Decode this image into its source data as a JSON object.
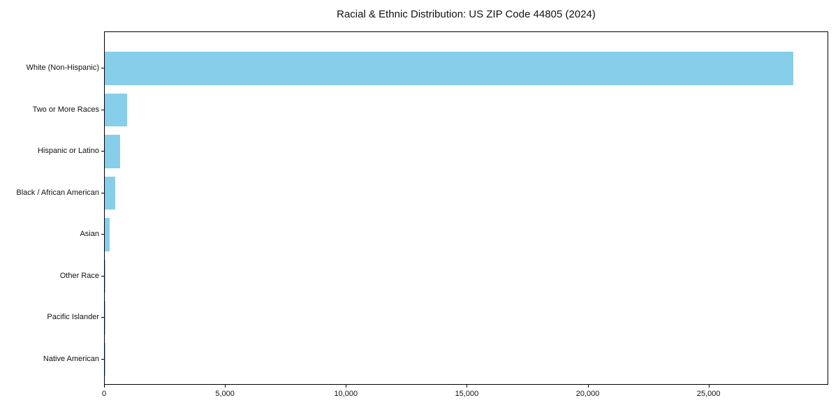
{
  "title": "Racial & Ethnic Distribution: US ZIP Code 44805 (2024)",
  "colors": {
    "bar": "#87CEEB",
    "axis": "#000000",
    "text": "#111111",
    "background": "#FFFFFF"
  },
  "chart_data": {
    "type": "bar",
    "orientation": "horizontal",
    "title": "Racial & Ethnic Distribution: US ZIP Code 44805 (2024)",
    "categories": [
      "White (Non-Hispanic)",
      "Two or More Races",
      "Hispanic or Latino",
      "Black / African American",
      "Asian",
      "Other Race",
      "Pacific Islander",
      "Native American"
    ],
    "values": [
      28470,
      910,
      635,
      440,
      200,
      40,
      5,
      15
    ],
    "xlabel": "",
    "ylabel": "",
    "xlim": [
      0,
      29890
    ],
    "x_ticks": [
      0,
      5000,
      10000,
      15000,
      20000,
      25000
    ],
    "x_tick_labels": [
      "0",
      "5,000",
      "10,000",
      "15,000",
      "20,000",
      "25,000"
    ],
    "grid": false,
    "legend": null,
    "bar_color": "#87CEEB"
  }
}
